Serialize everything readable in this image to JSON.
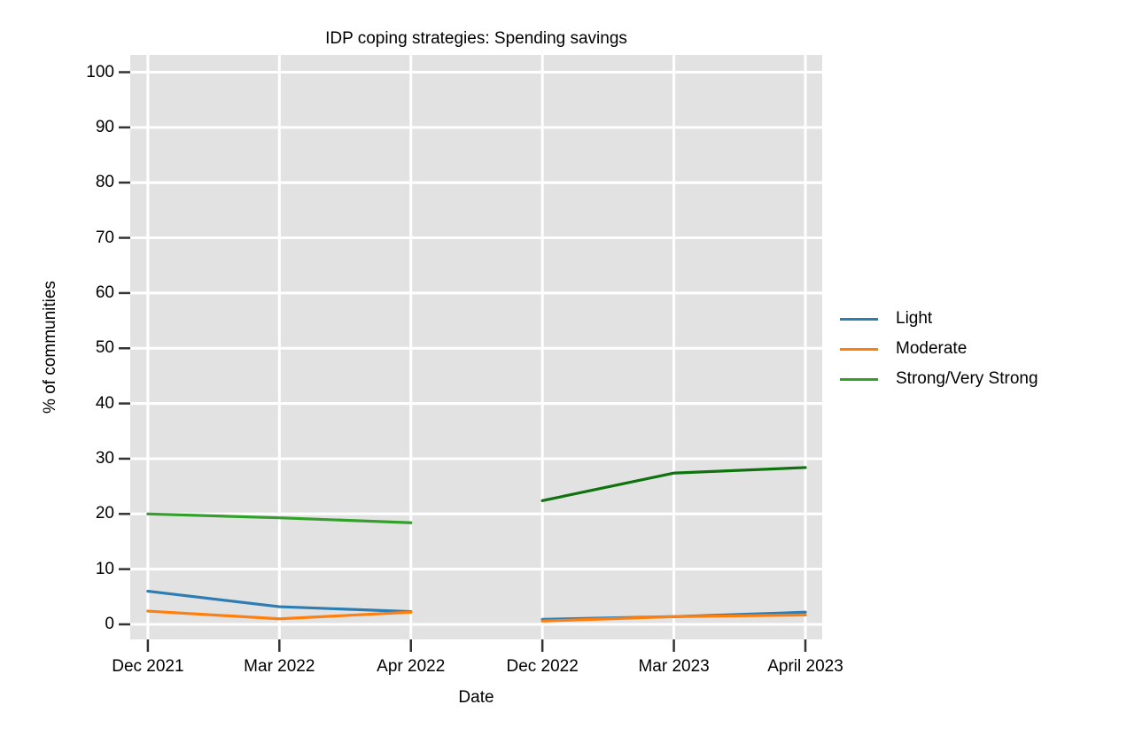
{
  "chart_data": {
    "type": "line",
    "title": "IDP coping strategies: Spending savings",
    "xlabel": "Date",
    "ylabel": "% of communities",
    "ylim": [
      0,
      100
    ],
    "yticks": [
      0,
      10,
      20,
      30,
      40,
      50,
      60,
      70,
      80,
      90,
      100
    ],
    "categories": [
      "Dec 2021",
      "Mar 2022",
      "Apr 2022",
      "Dec 2022",
      "Mar 2023",
      "April 2023"
    ],
    "grid": true,
    "legend_position": "right",
    "panel_bg": "#e2e2e2",
    "grid_color": "#ffffff",
    "tick_color": "#333333",
    "series": [
      {
        "name": "Light",
        "color": "#2d7db3",
        "segments": [
          {
            "x": [
              0,
              1,
              2
            ],
            "y": [
              6.0,
              3.2,
              2.3
            ]
          },
          {
            "x": [
              3,
              4,
              5
            ],
            "y": [
              0.9,
              1.4,
              2.2
            ]
          }
        ]
      },
      {
        "name": "Moderate",
        "color": "#ff7f0e",
        "segments": [
          {
            "x": [
              0,
              1,
              2
            ],
            "y": [
              2.4,
              1.0,
              2.2
            ]
          },
          {
            "x": [
              3,
              4,
              5
            ],
            "y": [
              0.6,
              1.4,
              1.7
            ]
          }
        ]
      },
      {
        "name": "Strong/Very Strong",
        "color": "#33a02c",
        "segment_colors": [
          "#33a02c",
          "#0e730e"
        ],
        "segments": [
          {
            "x": [
              0,
              1,
              2
            ],
            "y": [
              20.0,
              19.3,
              18.4
            ]
          },
          {
            "x": [
              3,
              4,
              5
            ],
            "y": [
              22.4,
              27.4,
              28.4
            ]
          }
        ]
      }
    ]
  },
  "legend": {
    "items": [
      {
        "label": "Light",
        "color": "#2d7db3"
      },
      {
        "label": "Moderate",
        "color": "#ff7f0e"
      },
      {
        "label": "Strong/Very Strong",
        "color": "#33a02c"
      }
    ]
  }
}
